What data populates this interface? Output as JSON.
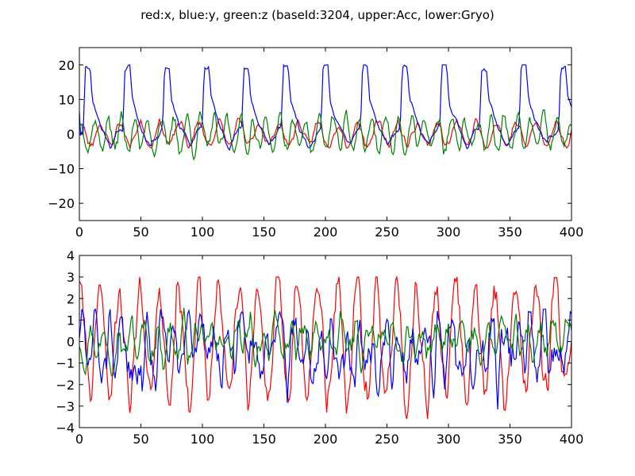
{
  "figure": {
    "title": "red:x, blue:y, green:z (baseId:3204, upper:Acc, lower:Gryo)"
  },
  "chart_data": [
    {
      "type": "line",
      "title": "",
      "xlabel": "",
      "ylabel": "",
      "xlim": [
        0,
        400
      ],
      "ylim": [
        -25,
        25
      ],
      "xticks": [
        0,
        50,
        100,
        150,
        200,
        250,
        300,
        350,
        400
      ],
      "yticks": [
        -20,
        -10,
        0,
        10,
        20
      ],
      "ytick_labels": [
        "−20",
        "−10",
        "0",
        "10",
        "20"
      ],
      "grid": false,
      "legend": "none",
      "series": [
        {
          "color": "#ff0000",
          "samples_x": [
            0,
            40,
            80,
            120,
            160,
            200,
            240,
            280,
            320,
            360,
            400
          ],
          "y_range": [
            -4,
            5
          ]
        },
        {
          "color": "#0000ff",
          "samples_x": [
            0,
            4,
            6,
            35,
            70,
            105,
            140,
            170,
            200,
            235,
            265,
            300,
            330,
            365,
            395
          ],
          "y_range": [
            -5,
            20
          ],
          "peak_value": 20,
          "period": 32
        },
        {
          "color": "#008000",
          "samples_x": [
            0,
            40,
            80,
            120,
            160,
            200,
            240,
            280,
            320,
            360,
            400
          ],
          "y_range": [
            -8,
            7
          ]
        }
      ]
    },
    {
      "type": "line",
      "title": "",
      "xlabel": "",
      "ylabel": "",
      "xlim": [
        0,
        400
      ],
      "ylim": [
        -4,
        4
      ],
      "xticks": [
        0,
        50,
        100,
        150,
        200,
        250,
        300,
        350,
        400
      ],
      "yticks": [
        -4,
        -3,
        -2,
        -1,
        0,
        1,
        2,
        3,
        4
      ],
      "ytick_labels": [
        "−4",
        "−3",
        "−2",
        "−1",
        "0",
        "1",
        "2",
        "3",
        "4"
      ],
      "grid": false,
      "legend": "none",
      "series": [
        {
          "color": "#ff0000",
          "y_range": [
            -3.6,
            3.0
          ]
        },
        {
          "color": "#0000ff",
          "y_range": [
            -3.5,
            1.5
          ]
        },
        {
          "color": "#008000",
          "y_range": [
            -1.6,
            2.2
          ]
        }
      ]
    }
  ]
}
